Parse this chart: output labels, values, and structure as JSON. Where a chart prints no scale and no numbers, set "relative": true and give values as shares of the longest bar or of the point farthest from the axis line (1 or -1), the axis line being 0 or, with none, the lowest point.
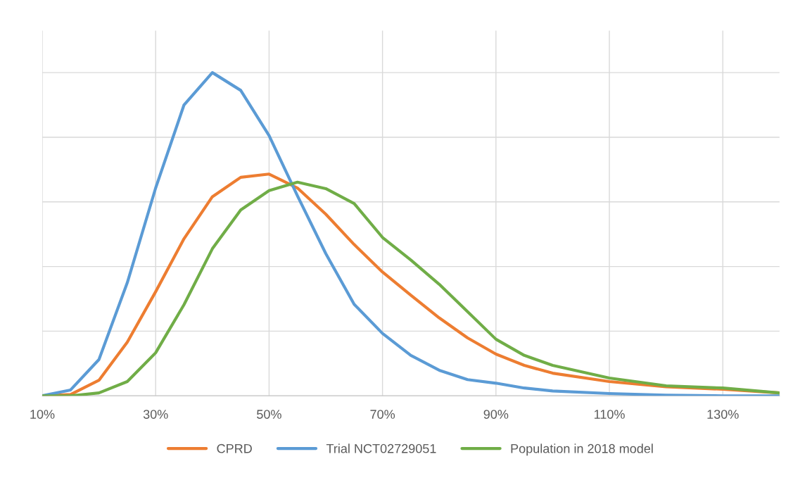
{
  "chart_data": {
    "type": "line",
    "relative": true,
    "x": [
      10,
      15,
      20,
      25,
      30,
      35,
      40,
      45,
      50,
      55,
      60,
      65,
      70,
      75,
      80,
      85,
      90,
      95,
      100,
      110,
      120,
      130,
      140
    ],
    "xlim": [
      10,
      140
    ],
    "xticks": [
      {
        "value": 10,
        "label": "10%"
      },
      {
        "value": 30,
        "label": "30%"
      },
      {
        "value": 50,
        "label": "50%"
      },
      {
        "value": 70,
        "label": "70%"
      },
      {
        "value": 90,
        "label": "90%"
      },
      {
        "value": 110,
        "label": "110%"
      },
      {
        "value": 130,
        "label": "130%"
      }
    ],
    "series": [
      {
        "name": "CPRD",
        "color": "#ed7d31",
        "values": [
          0,
          0.004,
          0.048,
          0.166,
          0.322,
          0.486,
          0.616,
          0.676,
          0.686,
          0.643,
          0.562,
          0.468,
          0.383,
          0.311,
          0.241,
          0.179,
          0.129,
          0.094,
          0.07,
          0.044,
          0.028,
          0.02,
          0.009
        ]
      },
      {
        "name": "Trial NCT02729051",
        "color": "#5b9bd5",
        "values": [
          0,
          0.018,
          0.112,
          0.35,
          0.643,
          0.9,
          1.0,
          0.945,
          0.805,
          0.619,
          0.44,
          0.283,
          0.193,
          0.125,
          0.079,
          0.05,
          0.039,
          0.024,
          0.015,
          0.007,
          0.002,
          0,
          0
        ]
      },
      {
        "name": "Population in 2018 model",
        "color": "#70ad47",
        "values": [
          0,
          0,
          0.009,
          0.044,
          0.133,
          0.282,
          0.455,
          0.575,
          0.635,
          0.661,
          0.641,
          0.595,
          0.49,
          0.42,
          0.345,
          0.26,
          0.175,
          0.125,
          0.094,
          0.055,
          0.031,
          0.024,
          0.009
        ]
      }
    ],
    "grid": true,
    "legend": "bottom",
    "line_style": "solid",
    "marker": "none"
  }
}
